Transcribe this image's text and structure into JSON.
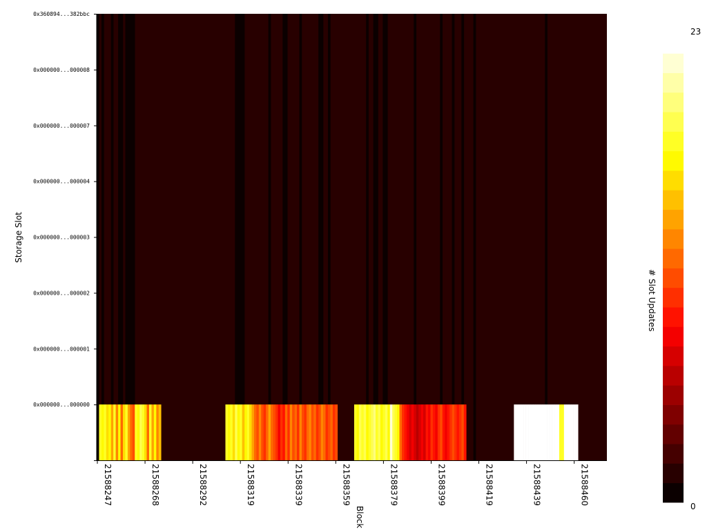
{
  "chart_data": {
    "type": "heatmap",
    "xlabel": "Block",
    "ylabel": "Storage Slot",
    "colorbar_label": "# Slot Updates",
    "colormap": "hot",
    "colorbar_min": 0,
    "colorbar_max": 23,
    "x_tick_labels": [
      "21588247",
      "21588268",
      "21588292",
      "21588319",
      "21588339",
      "21588359",
      "21588379",
      "21588399",
      "21588419",
      "21588439",
      "21588460"
    ],
    "y_tick_labels": [
      "0x000000...000000",
      "0x000000...000001",
      "0x000000...000002",
      "0x000000...000003",
      "0x000000...000004",
      "0x000000...000007",
      "0x000000...000008",
      "0x360894...382bbc"
    ],
    "background_value": 1,
    "black_column_ranges": [
      [
        0,
        1
      ],
      [
        2,
        3
      ],
      [
        6,
        7
      ],
      [
        9,
        11
      ],
      [
        12,
        16
      ],
      [
        58,
        62
      ],
      [
        72,
        73
      ],
      [
        78,
        80
      ],
      [
        85,
        86
      ],
      [
        93,
        95
      ],
      [
        97,
        98
      ],
      [
        113,
        114
      ],
      [
        116,
        118
      ],
      [
        120,
        122
      ],
      [
        133,
        134
      ],
      [
        144,
        145
      ],
      [
        149,
        150
      ],
      [
        153,
        154
      ],
      [
        158,
        159
      ],
      [
        188,
        189
      ]
    ],
    "slot0_segments": [
      {
        "start": 1,
        "values": [
          18,
          17,
          18,
          16,
          17,
          14,
          18,
          13,
          17,
          12,
          16,
          18,
          14,
          12,
          11,
          18,
          17,
          19,
          18,
          16,
          12,
          18,
          14,
          17,
          13,
          15
        ]
      },
      {
        "start": 54,
        "values": [
          18,
          17,
          18,
          16,
          19,
          17,
          18,
          15,
          17,
          18,
          16,
          14,
          12,
          11,
          13,
          11,
          10,
          12,
          14,
          12,
          11,
          10,
          8,
          10,
          9,
          12,
          10,
          13,
          11,
          12,
          10,
          13,
          11,
          10,
          12,
          13,
          11,
          12,
          10,
          11,
          13,
          12,
          10,
          11,
          12,
          10,
          11
        ]
      },
      {
        "start": 108,
        "values": [
          18,
          17,
          19,
          18,
          19,
          17,
          18,
          19,
          20,
          18,
          19,
          17,
          18,
          19,
          17,
          22,
          19,
          18,
          17,
          12,
          10,
          9,
          8,
          7,
          8,
          7,
          6,
          7,
          8,
          7,
          9,
          8,
          10,
          9,
          8,
          10,
          11,
          9,
          8,
          9,
          10,
          11,
          10,
          9,
          10,
          11,
          9
        ]
      },
      {
        "start": 175,
        "values": [
          23,
          23,
          23,
          23,
          23,
          23,
          23,
          23,
          23,
          23,
          23,
          23,
          23,
          23,
          23,
          23,
          23,
          23,
          23,
          18,
          18,
          23,
          23,
          23,
          23,
          23,
          23,
          1
        ]
      }
    ]
  }
}
